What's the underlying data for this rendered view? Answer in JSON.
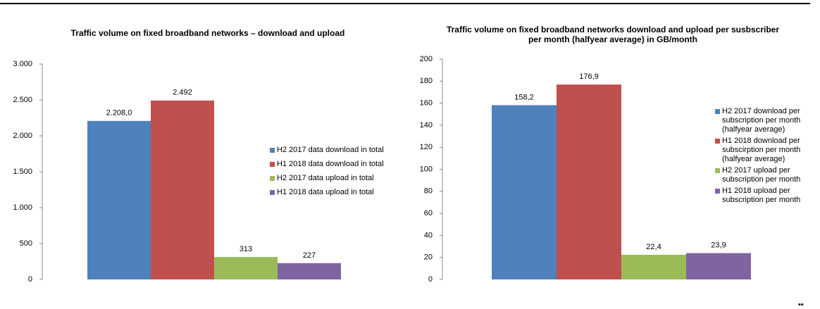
{
  "chart_data": [
    {
      "type": "bar",
      "title": "Traffic volume on fixed broadband networks – download and upload",
      "ylim": [
        0,
        3000
      ],
      "yticks": [
        0,
        {
          "value": 500,
          "label": "500"
        },
        {
          "value": 1000,
          "label": "1.000"
        },
        {
          "value": 1500,
          "label": "1.500"
        },
        {
          "value": 2000,
          "label": "2.000"
        },
        {
          "value": 2500,
          "label": "2.500"
        },
        {
          "value": 3000,
          "label": "3.000"
        }
      ],
      "series": [
        {
          "name": "H2 2017 data download in total",
          "color": "#4f81bd",
          "values": [
            2208.0
          ],
          "value_labels": [
            "2.208,0"
          ]
        },
        {
          "name": "H1 2018 data download in total",
          "color": "#c0504d",
          "values": [
            2492
          ],
          "value_labels": [
            "2.492"
          ]
        },
        {
          "name": "H2 2017 data upload in total",
          "color": "#9bbb59",
          "values": [
            313
          ]
        },
        {
          "name": "H1 2018 data upload in total",
          "color": "#8064a2",
          "values": [
            227
          ]
        }
      ]
    },
    {
      "type": "bar",
      "title": "Traffic volume on fixed broadband networks download and upload per susbscriber per month (halfyear average)  in GB/month",
      "ylim": [
        0,
        200
      ],
      "yticks": [
        0,
        20,
        40,
        60,
        80,
        100,
        120,
        140,
        160,
        180,
        200
      ],
      "series": [
        {
          "name": "H2 2017 download per subscription per month (halfyear average)",
          "color": "#4f81bd",
          "values": [
            158.2
          ],
          "value_labels": [
            "158,2"
          ]
        },
        {
          "name": "H1 2018 download per subscirption per month (halfyear average)",
          "color": "#c0504d",
          "values": [
            176.9
          ],
          "value_labels": [
            "176,9"
          ]
        },
        {
          "name": "H2 2017 upload per subscription per month",
          "color": "#9bbb59",
          "values": [
            22.4
          ],
          "value_labels": [
            "22,4"
          ]
        },
        {
          "name": "H1 2018 upload per subscription per month",
          "color": "#8064a2",
          "values": [
            23.9
          ],
          "value_labels": [
            "23,9"
          ]
        }
      ]
    }
  ]
}
